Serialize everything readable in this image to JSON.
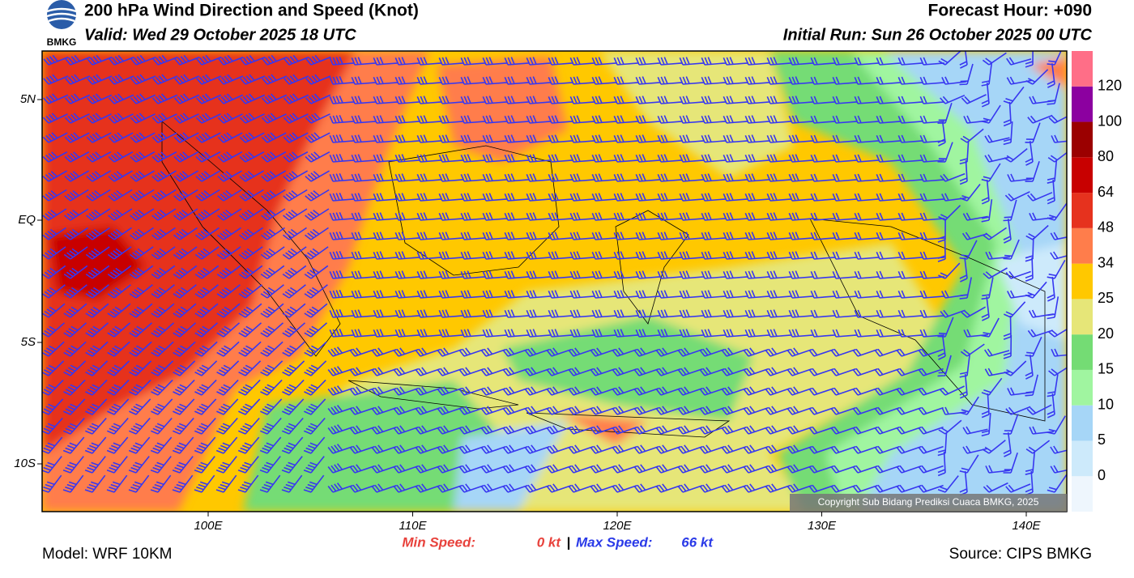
{
  "header": {
    "logo_text": "BMKG",
    "title": "200 hPa Wind Direction and Speed (Knot)",
    "valid": "Valid: Wed 29 October 2025 18 UTC",
    "forecast_hour": "Forecast Hour: +090",
    "initial_run": "Initial Run: Sun 26 October 2025 00 UTC"
  },
  "map": {
    "lat_labels": [
      "5N",
      "EQ",
      "5S",
      "10S"
    ],
    "lon_labels": [
      "100E",
      "110E",
      "120E",
      "130E",
      "140E"
    ],
    "copyright": "Copyright Sub Bidang Prediksi Cuaca BMKG, 2025"
  },
  "colorbar": {
    "ticks": [
      0,
      5,
      10,
      15,
      20,
      25,
      34,
      48,
      64,
      80,
      100,
      120
    ],
    "colors": [
      "#eef6fd",
      "#cdeafb",
      "#a6d6f7",
      "#a0f5a0",
      "#74dc74",
      "#e6e678",
      "#ffc800",
      "#ff7d4b",
      "#e6321e",
      "#c80000",
      "#9b0000",
      "#8c00a0",
      "#ff6e87"
    ]
  },
  "footer": {
    "min_label": "Min Speed:",
    "min_value": "0 kt",
    "separator": "|",
    "max_label": "Max Speed:",
    "max_value": "66 kt",
    "model": "Model: WRF 10KM",
    "source": "Source: CIPS BMKG"
  }
}
